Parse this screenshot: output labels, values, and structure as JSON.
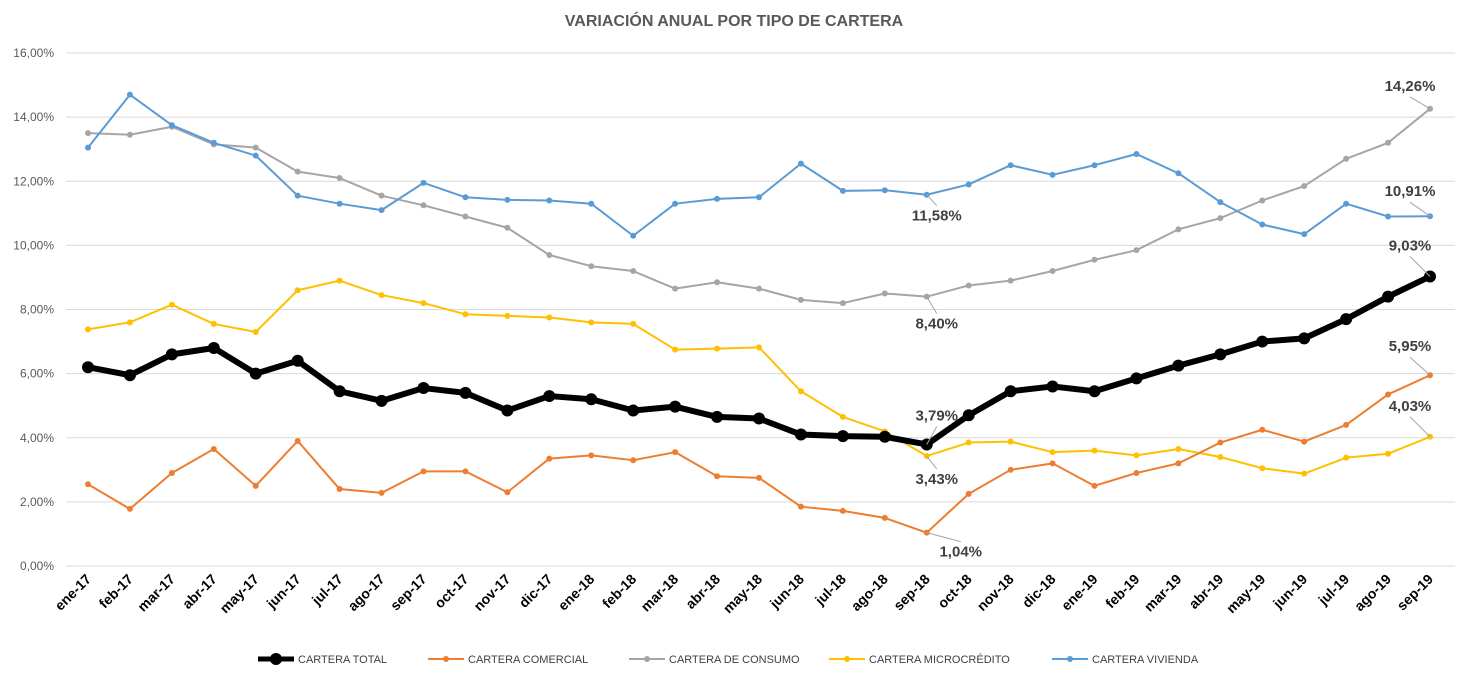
{
  "chart_data": {
    "type": "line",
    "title": "VARIACIÓN ANUAL POR TIPO DE CARTERA",
    "xlabel": "",
    "ylabel": "",
    "ylim": [
      0,
      16
    ],
    "yticks": [
      "0,00%",
      "2,00%",
      "4,00%",
      "6,00%",
      "8,00%",
      "10,00%",
      "12,00%",
      "14,00%",
      "16,00%"
    ],
    "grid": true,
    "legend_position": "bottom",
    "categories": [
      "ene-17",
      "feb-17",
      "mar-17",
      "abr-17",
      "may-17",
      "jun-17",
      "jul-17",
      "ago-17",
      "sep-17",
      "oct-17",
      "nov-17",
      "dic-17",
      "ene-18",
      "feb-18",
      "mar-18",
      "abr-18",
      "may-18",
      "jun-18",
      "jul-18",
      "ago-18",
      "sep-18",
      "oct-18",
      "nov-18",
      "dic-18",
      "ene-19",
      "feb-19",
      "mar-19",
      "abr-19",
      "may-19",
      "jun-19",
      "jul-19",
      "ago-19",
      "sep-19"
    ],
    "series": [
      {
        "name": "CARTERA TOTAL",
        "color": "#000000",
        "values": [
          6.2,
          5.95,
          6.6,
          6.8,
          6.0,
          6.4,
          5.45,
          5.15,
          5.55,
          5.4,
          4.85,
          5.3,
          5.2,
          4.85,
          4.97,
          4.65,
          4.6,
          4.1,
          4.05,
          4.03,
          3.79,
          4.7,
          5.45,
          5.6,
          5.45,
          5.85,
          6.25,
          6.6,
          7.0,
          7.1,
          7.7,
          8.4,
          9.03
        ]
      },
      {
        "name": "CARTERA COMERCIAL",
        "color": "#ed7d31",
        "values": [
          2.55,
          1.78,
          2.9,
          3.65,
          2.5,
          3.9,
          2.4,
          2.28,
          2.95,
          2.95,
          2.3,
          3.35,
          3.45,
          3.3,
          3.55,
          2.8,
          2.75,
          1.85,
          1.72,
          1.5,
          1.04,
          2.25,
          3.0,
          3.2,
          2.5,
          2.9,
          3.2,
          3.85,
          4.25,
          3.88,
          4.4,
          5.35,
          5.95
        ]
      },
      {
        "name": "CARTERA DE CONSUMO",
        "color": "#a5a5a5",
        "values": [
          13.5,
          13.45,
          13.7,
          13.15,
          13.05,
          12.3,
          12.1,
          11.55,
          11.25,
          10.9,
          10.55,
          9.7,
          9.35,
          9.2,
          8.65,
          8.85,
          8.65,
          8.3,
          8.2,
          8.5,
          8.4,
          8.75,
          8.9,
          9.2,
          9.55,
          9.85,
          10.5,
          10.85,
          11.4,
          11.85,
          12.7,
          13.2,
          14.26
        ]
      },
      {
        "name": "CARTERA MICROCRÉDITO",
        "color": "#ffc000",
        "values": [
          7.38,
          7.6,
          8.15,
          7.55,
          7.3,
          8.6,
          8.9,
          8.45,
          8.2,
          7.85,
          7.8,
          7.75,
          7.6,
          7.55,
          6.75,
          6.78,
          6.82,
          5.45,
          4.65,
          4.2,
          3.43,
          3.85,
          3.88,
          3.55,
          3.6,
          3.45,
          3.65,
          3.4,
          3.05,
          2.88,
          3.38,
          3.5,
          4.03
        ]
      },
      {
        "name": "CARTERA VIVIENDA",
        "color": "#5b9bd5",
        "values": [
          13.05,
          14.7,
          13.75,
          13.2,
          12.8,
          11.55,
          11.3,
          11.1,
          11.95,
          11.5,
          11.42,
          11.4,
          11.3,
          10.3,
          11.3,
          11.45,
          11.5,
          12.55,
          11.7,
          11.72,
          11.58,
          11.9,
          12.5,
          12.2,
          12.5,
          12.85,
          12.25,
          11.35,
          10.65,
          10.35,
          11.3,
          10.9,
          10.91
        ]
      }
    ],
    "annotations": [
      {
        "series": 2,
        "index": 32,
        "text": "14,26%"
      },
      {
        "series": 4,
        "index": 32,
        "text": "10,91%"
      },
      {
        "series": 0,
        "index": 32,
        "text": "9,03%"
      },
      {
        "series": 1,
        "index": 32,
        "text": "5,95%"
      },
      {
        "series": 3,
        "index": 32,
        "text": "4,03%"
      },
      {
        "series": 4,
        "index": 20,
        "text": "11,58%"
      },
      {
        "series": 2,
        "index": 20,
        "text": "8,40%"
      },
      {
        "series": 0,
        "index": 20,
        "text": "3,79%"
      },
      {
        "series": 3,
        "index": 20,
        "text": "3,43%"
      },
      {
        "series": 1,
        "index": 20,
        "text": "1,04%"
      }
    ]
  }
}
